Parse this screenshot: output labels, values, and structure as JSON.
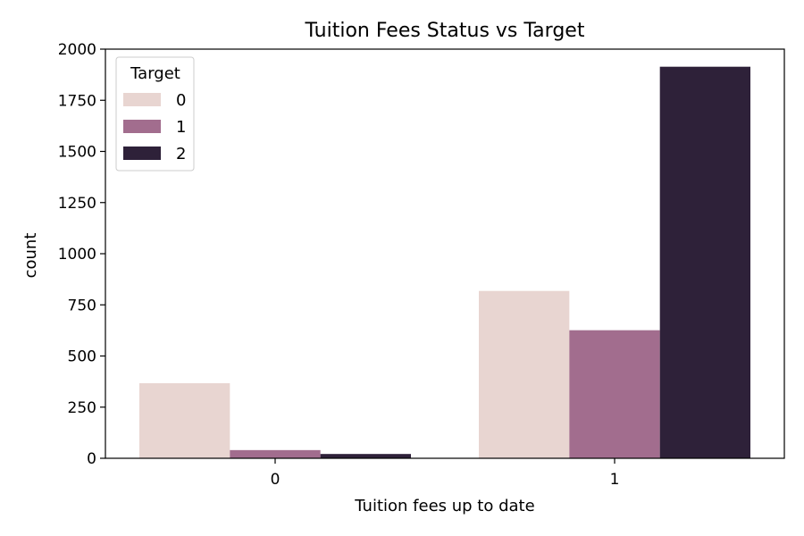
{
  "chart_data": {
    "type": "bar",
    "title": "Tuition Fees Status vs Target",
    "xlabel": "Tuition fees up to date",
    "ylabel": "count",
    "categories": [
      "0",
      "1"
    ],
    "series": [
      {
        "name": "0",
        "values": [
          367,
          818
        ],
        "color": "#e8d5d1"
      },
      {
        "name": "1",
        "values": [
          40,
          626
        ],
        "color": "#a26d8e"
      },
      {
        "name": "2",
        "values": [
          21,
          1914
        ],
        "color": "#2e2139"
      }
    ],
    "ylim": [
      0,
      2000
    ],
    "yticks": [
      "0",
      "250",
      "500",
      "750",
      "1000",
      "1250",
      "1500",
      "1750",
      "2000"
    ],
    "legend": {
      "title": "Target",
      "placement": "top-left"
    },
    "grid": false
  }
}
